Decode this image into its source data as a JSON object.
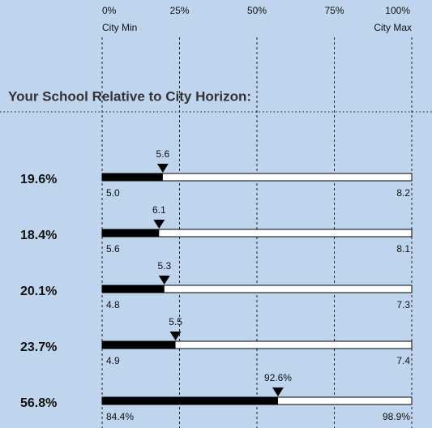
{
  "chart_data": {
    "type": "bar",
    "orientation": "horizontal",
    "title": "Your School Relative to City Horizon:",
    "xlim": [
      0,
      100
    ],
    "xticks": [
      {
        "value": 0,
        "label": "0%"
      },
      {
        "value": 25,
        "label": "25%"
      },
      {
        "value": 50,
        "label": "50%"
      },
      {
        "value": 75,
        "label": "75%"
      },
      {
        "value": 100,
        "label": "100%"
      }
    ],
    "xlim_labels": [
      "City Min",
      "City Max"
    ],
    "values": [
      19.6,
      18.4,
      20.1,
      23.7,
      56.8
    ],
    "value_labels": [
      "19.6%",
      "18.4%",
      "20.1%",
      "23.7%",
      "56.8%"
    ],
    "school_values": [
      "5.6",
      "6.1",
      "5.3",
      "5.5",
      "92.6%"
    ],
    "city_min": [
      "5.0",
      "5.6",
      "4.8",
      "4.9",
      "84.4%"
    ],
    "city_max": [
      "8.2",
      "8.1",
      "7.3",
      "7.4",
      "98.9%"
    ],
    "color": "#000000",
    "grid": true
  }
}
